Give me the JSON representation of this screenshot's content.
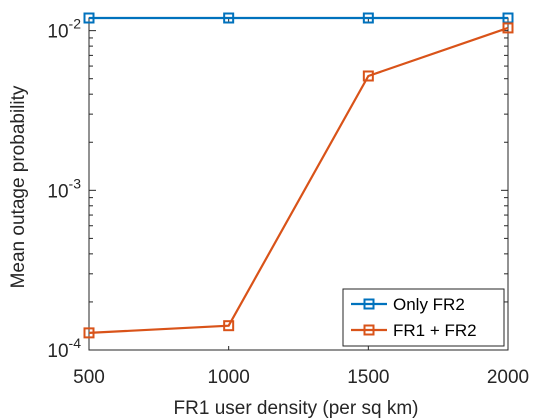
{
  "chart_data": {
    "type": "line",
    "title": "",
    "xlabel": "FR1 user density (per sq km)",
    "ylabel": "Mean outage probability",
    "x": [
      500,
      1000,
      1500,
      2000
    ],
    "x_tick_labels": [
      "500",
      "1000",
      "1500",
      "2000"
    ],
    "xlim": [
      500,
      2000
    ],
    "y_scale": "log",
    "ylim": [
      0.0001,
      0.012
    ],
    "y_ticks": [
      {
        "value": 0.01,
        "base": "10",
        "exponent": "-2"
      },
      {
        "value": 0.001,
        "base": "10",
        "exponent": "-3"
      },
      {
        "value": 0.0001,
        "base": "10",
        "exponent": "-4"
      }
    ],
    "grid": false,
    "legend_position": "bottom-right",
    "marker": "square",
    "series": [
      {
        "name": "Only FR2",
        "color": "#0072BD",
        "values": [
          0.012,
          0.012,
          0.012,
          0.012
        ]
      },
      {
        "name": "FR1 + FR2",
        "color": "#D95319",
        "values": [
          0.000128,
          0.000142,
          0.0052,
          0.0104
        ]
      }
    ]
  }
}
